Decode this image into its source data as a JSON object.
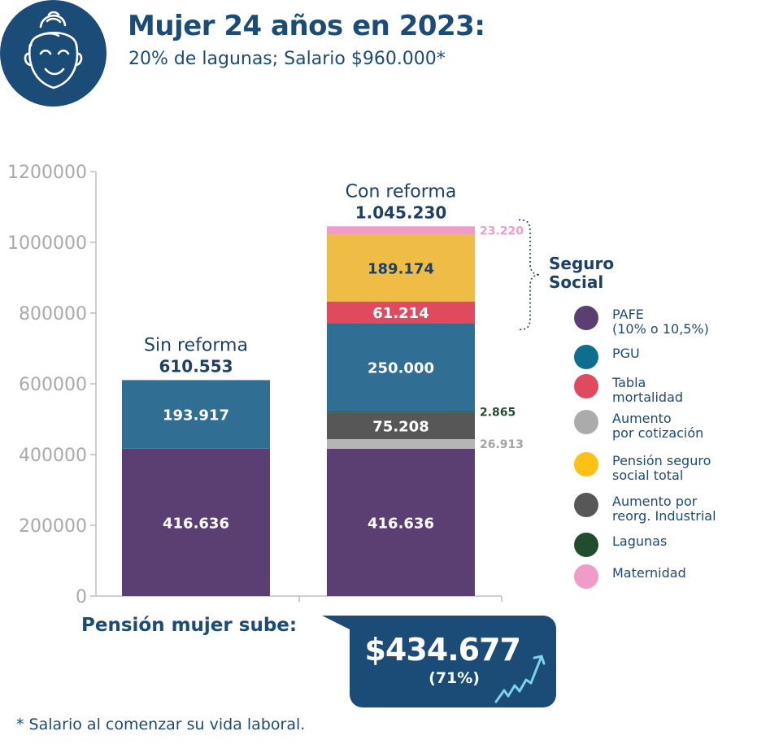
{
  "header": {
    "title": "Mujer 24 años en 2023:",
    "subtitle": "20% de lagunas; Salario $960.000*",
    "avatar_icon": "woman-face-icon"
  },
  "chart_data": {
    "type": "bar",
    "stacked": true,
    "ylim": [
      0,
      1200000
    ],
    "yticks": [
      "0",
      "200000",
      "400000",
      "600000",
      "800000",
      "1000000",
      "1200000"
    ],
    "yticks_values": [
      0,
      200000,
      400000,
      600000,
      800000,
      1000000,
      1200000
    ],
    "bars": [
      {
        "label": "Sin reforma",
        "total_label": "610.553",
        "total": 610553,
        "segments": [
          {
            "series": "PAFE (10% o 10,5%)",
            "value": 416636,
            "label": "416.636",
            "color": "#5b3e72",
            "label_pos": "inside"
          },
          {
            "series": "PGU",
            "value": 193917,
            "label": "193.917",
            "color": "#316e93",
            "label_pos": "inside"
          }
        ]
      },
      {
        "label": "Con reforma",
        "total_label": "1.045.230",
        "total": 1045230,
        "segments": [
          {
            "series": "PAFE (10% o 10,5%)",
            "value": 416636,
            "label": "416.636",
            "color": "#5b3e72",
            "label_pos": "inside"
          },
          {
            "series": "Aumento por cotización",
            "value": 26913,
            "label": "26.913",
            "color": "#b5b5b5",
            "label_pos": "right",
            "label_color": "#a3a3a3"
          },
          {
            "series": "Aumento por reorg. Industrial",
            "value": 75208,
            "label": "75.208",
            "color": "#575757",
            "label_pos": "inside"
          },
          {
            "series": "Lagunas",
            "value": 2865,
            "label": "2.865",
            "color": "#234f31",
            "label_pos": "right",
            "label_color": "#234f31"
          },
          {
            "series": "PGU",
            "value": 250000,
            "label": "250.000",
            "color": "#316e93",
            "label_pos": "inside"
          },
          {
            "series": "Tabla mortalidad",
            "value": 61214,
            "label": "61.214",
            "color": "#e04a5f",
            "label_pos": "inside"
          },
          {
            "series": "Pensión seguro social total",
            "value": 189174,
            "label": "189.174",
            "color": "#efbd45",
            "label_pos": "inside",
            "label_color": "#1d4166"
          },
          {
            "series": "Maternidad",
            "value": 23220,
            "label": "23.220",
            "color": "#ef9cc9",
            "label_pos": "right",
            "label_color": "#ef9cc9"
          }
        ]
      }
    ],
    "annotation": {
      "text": "Seguro\nSocial",
      "spans_series": [
        "Tabla mortalidad",
        "Pensión seguro social total",
        "Maternidad"
      ]
    },
    "legend": [
      {
        "label": "PAFE\n(10% o 10,5%)",
        "color": "#5b3e72"
      },
      {
        "label": "PGU",
        "color": "#0e6e8e"
      },
      {
        "label": "Tabla\nmortalidad",
        "color": "#e04a5f"
      },
      {
        "label": "Aumento\npor cotización",
        "color": "#ababab"
      },
      {
        "label": "Pensión seguro\nsocial total",
        "color": "#fbc114"
      },
      {
        "label": "Aumento por\nreorg. Industrial",
        "color": "#575757"
      },
      {
        "label": "Lagunas",
        "color": "#1f4d2d"
      },
      {
        "label": "Maternidad",
        "color": "#ef9cc9"
      }
    ],
    "legend_position": "right"
  },
  "callout": {
    "label": "Pensión mujer sube:",
    "amount": "$434.677",
    "percent": "(71%)",
    "icon": "trending-up-arrow-icon"
  },
  "footnote": "* Salario al comenzar su vida laboral."
}
